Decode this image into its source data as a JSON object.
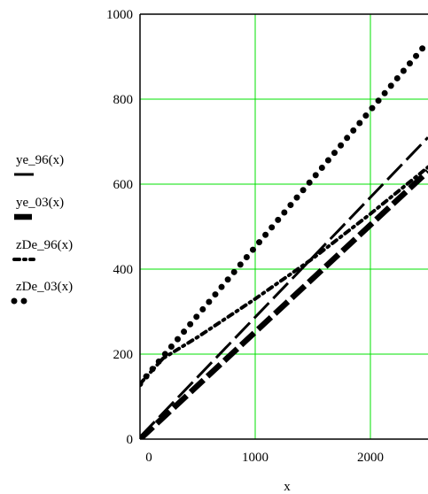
{
  "chart_data": {
    "type": "line",
    "xlabel": "x",
    "ylabel": "",
    "xlim": [
      0,
      2500
    ],
    "ylim": [
      0,
      1000
    ],
    "grid": true,
    "grid_color": "#00e000",
    "x_ticks": [
      0,
      1000,
      2000
    ],
    "y_ticks": [
      0,
      200,
      400,
      600,
      800,
      1000
    ],
    "legend_position": "left",
    "series": [
      {
        "name": "ye_96(x)",
        "style": "solid",
        "color": "#000000",
        "x": [
          0,
          2500
        ],
        "y": [
          5,
          710
        ]
      },
      {
        "name": "ye_03(x)",
        "style": "thick-dash",
        "color": "#000000",
        "x": [
          0,
          2500
        ],
        "y": [
          0,
          630
        ]
      },
      {
        "name": "zDe_96(x)",
        "style": "dash-dot",
        "color": "#000000",
        "x": [
          0,
          200,
          500,
          1000,
          1500,
          2000,
          2500
        ],
        "y": [
          130,
          190,
          240,
          330,
          425,
          530,
          640
        ]
      },
      {
        "name": "zDe_03(x)",
        "style": "dotted",
        "color": "#000000",
        "x": [
          0,
          2500
        ],
        "y": [
          130,
          935
        ]
      }
    ]
  }
}
